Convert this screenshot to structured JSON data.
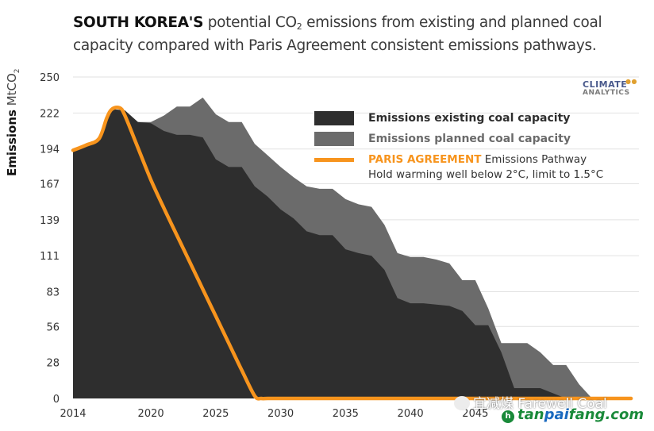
{
  "title": {
    "bold": "SOUTH KOREA'S",
    "part1": " potential CO",
    "sub": "2",
    "part2": " emissions from existing and planned coal capacity compared with Paris Agreement consistent emissions pathways."
  },
  "y_axis": {
    "bold": "Emissions",
    "unit": " MtCO",
    "unit_sub": "2"
  },
  "logo": {
    "line1": "CLIMATE",
    "line2": "ANALYTICS"
  },
  "legend": {
    "existing": "Emissions existing coal capacity",
    "planned": "Emissions planned coal capacity",
    "paris_bold": "PARIS AGREEMENT",
    "paris_rest": " Emissions Pathway",
    "paris_line2": "Hold warming well below 2°C, limit to 1.5°C"
  },
  "watermark": {
    "text": "宜减煤 Farewell Coal",
    "site_a": "tan",
    "site_b": "pai",
    "site_c": "fang.com"
  },
  "colors": {
    "existing": "#2e2e2e",
    "planned": "#6b6b6b",
    "paris": "#f7941d",
    "grid": "#e2e2e2"
  },
  "chart_data": {
    "type": "area",
    "title": "SOUTH KOREA'S potential CO2 emissions from existing and planned coal capacity compared with Paris Agreement consistent emissions pathways.",
    "xlabel": "",
    "ylabel": "Emissions MtCO2",
    "xlim": [
      2014,
      2057
    ],
    "ylim": [
      0,
      250
    ],
    "x_ticks": [
      2014,
      2020,
      2025,
      2030,
      2035,
      2040,
      2045
    ],
    "y_ticks": [
      0,
      28,
      56,
      83,
      111,
      139,
      167,
      194,
      222,
      250
    ],
    "grid": true,
    "legend_position": "top-right",
    "x": [
      2014,
      2015,
      2016,
      2017,
      2018,
      2019,
      2020,
      2021,
      2022,
      2023,
      2024,
      2025,
      2026,
      2027,
      2028,
      2029,
      2030,
      2031,
      2032,
      2033,
      2034,
      2035,
      2036,
      2037,
      2038,
      2039,
      2040,
      2041,
      2042,
      2043,
      2044,
      2045,
      2046,
      2047,
      2048,
      2049,
      2050,
      2051,
      2052,
      2053,
      2054
    ],
    "series": [
      {
        "name": "Emissions existing coal capacity",
        "kind": "area",
        "values": [
          193,
          197,
          202,
          225,
          224,
          215,
          214,
          208,
          205,
          205,
          203,
          186,
          180,
          180,
          165,
          157,
          147,
          140,
          130,
          127,
          127,
          116,
          113,
          111,
          100,
          78,
          74,
          74,
          73,
          72,
          68,
          57,
          57,
          36,
          8,
          8,
          8,
          4,
          0,
          0,
          0
        ]
      },
      {
        "name": "Emissions planned coal capacity",
        "kind": "area-total",
        "values": [
          193,
          197,
          202,
          225,
          224,
          215,
          215,
          220,
          227,
          227,
          234,
          221,
          215,
          215,
          198,
          189,
          180,
          172,
          165,
          163,
          163,
          155,
          151,
          149,
          135,
          113,
          110,
          110,
          108,
          105,
          92,
          92,
          70,
          43,
          43,
          43,
          36,
          26,
          26,
          11,
          0
        ]
      },
      {
        "name": "PARIS AGREEMENT Emissions Pathway",
        "kind": "line",
        "x": [
          2014,
          2015,
          2016,
          2016.6,
          2017,
          2017.6,
          2018,
          2019,
          2020,
          2021,
          2022,
          2023,
          2024,
          2025,
          2026,
          2027,
          2028,
          2028.5,
          2029,
          2030,
          2035,
          2040,
          2045,
          2050,
          2057
        ],
        "values": [
          193,
          197,
          202,
          218,
          225,
          226,
          220,
          195,
          170,
          148,
          127,
          106,
          85,
          64,
          43,
          22,
          2,
          0,
          0,
          0,
          0,
          0,
          0,
          0,
          0
        ]
      }
    ]
  }
}
